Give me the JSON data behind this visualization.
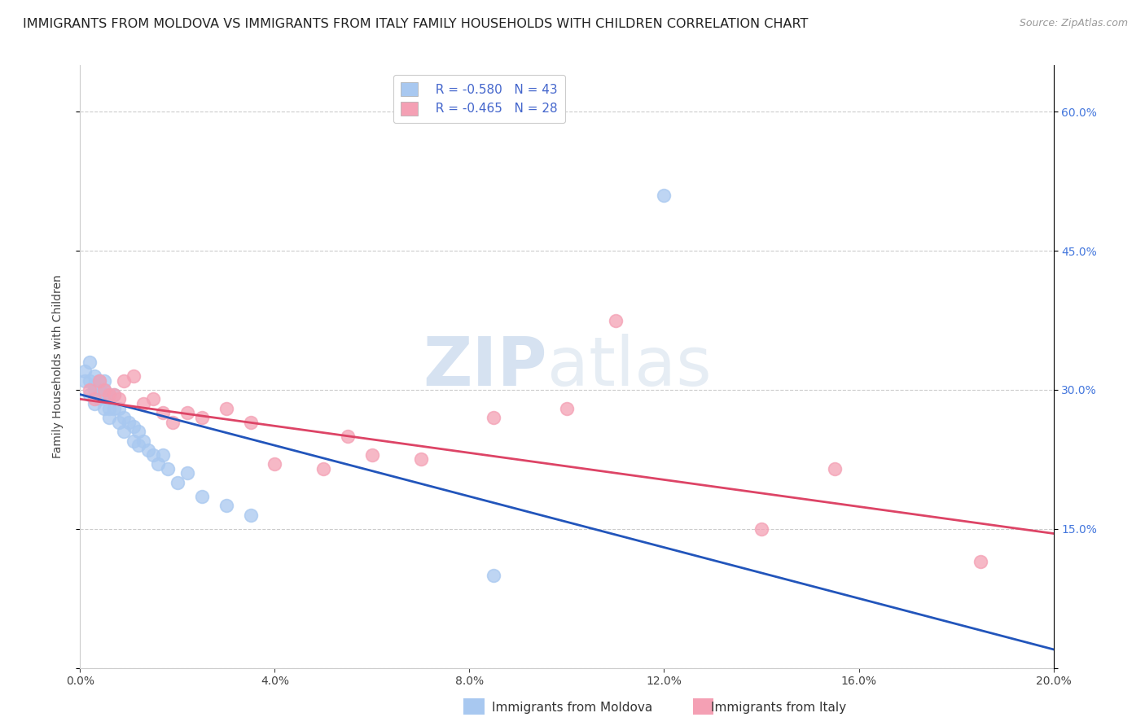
{
  "title": "IMMIGRANTS FROM MOLDOVA VS IMMIGRANTS FROM ITALY FAMILY HOUSEHOLDS WITH CHILDREN CORRELATION CHART",
  "source": "Source: ZipAtlas.com",
  "ylabel": "Family Households with Children",
  "xlabel_moldova": "Immigrants from Moldova",
  "xlabel_italy": "Immigrants from Italy",
  "color_moldova": "#a8c8f0",
  "color_italy": "#f4a0b4",
  "color_line_moldova": "#2255bb",
  "color_line_italy": "#dd4466",
  "color_r_value": "#4466cc",
  "xlim": [
    0.0,
    0.2
  ],
  "ylim": [
    0.0,
    0.65
  ],
  "xticks": [
    0.0,
    0.04,
    0.08,
    0.12,
    0.16,
    0.2
  ],
  "yticks_right": [
    0.15,
    0.3,
    0.45,
    0.6
  ],
  "background_color": "#ffffff",
  "grid_color": "#cccccc",
  "title_fontsize": 11.5,
  "axis_label_fontsize": 10,
  "tick_fontsize": 10,
  "legend_fontsize": 11,
  "watermark_color": "#ccddf0",
  "watermark_fontsize": 60,
  "moldova_x": [
    0.001,
    0.001,
    0.002,
    0.002,
    0.002,
    0.003,
    0.003,
    0.003,
    0.003,
    0.004,
    0.004,
    0.004,
    0.005,
    0.005,
    0.005,
    0.005,
    0.006,
    0.006,
    0.006,
    0.007,
    0.007,
    0.008,
    0.008,
    0.009,
    0.009,
    0.01,
    0.011,
    0.011,
    0.012,
    0.012,
    0.013,
    0.014,
    0.015,
    0.016,
    0.017,
    0.018,
    0.02,
    0.022,
    0.025,
    0.03,
    0.035,
    0.085,
    0.12
  ],
  "moldova_y": [
    0.32,
    0.31,
    0.33,
    0.31,
    0.295,
    0.315,
    0.305,
    0.3,
    0.285,
    0.31,
    0.295,
    0.29,
    0.31,
    0.3,
    0.295,
    0.28,
    0.295,
    0.28,
    0.27,
    0.295,
    0.28,
    0.28,
    0.265,
    0.27,
    0.255,
    0.265,
    0.26,
    0.245,
    0.255,
    0.24,
    0.245,
    0.235,
    0.23,
    0.22,
    0.23,
    0.215,
    0.2,
    0.21,
    0.185,
    0.175,
    0.165,
    0.1,
    0.51
  ],
  "italy_x": [
    0.002,
    0.003,
    0.004,
    0.005,
    0.006,
    0.007,
    0.008,
    0.009,
    0.011,
    0.013,
    0.015,
    0.017,
    0.019,
    0.022,
    0.025,
    0.03,
    0.035,
    0.04,
    0.05,
    0.055,
    0.06,
    0.07,
    0.085,
    0.1,
    0.11,
    0.14,
    0.155,
    0.185
  ],
  "italy_y": [
    0.3,
    0.29,
    0.31,
    0.3,
    0.295,
    0.295,
    0.29,
    0.31,
    0.315,
    0.285,
    0.29,
    0.275,
    0.265,
    0.275,
    0.27,
    0.28,
    0.265,
    0.22,
    0.215,
    0.25,
    0.23,
    0.225,
    0.27,
    0.28,
    0.375,
    0.15,
    0.215,
    0.115
  ]
}
